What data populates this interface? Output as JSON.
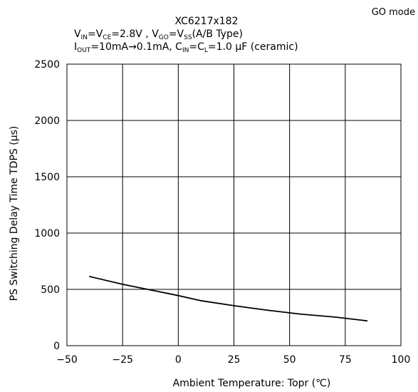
{
  "mode_label": "GO mode",
  "chart_data": {
    "type": "line",
    "title": "XC6217x182",
    "subtitle_line1": {
      "p1": "V",
      "s1": "IN",
      "p2": "=V",
      "s2": "CE",
      "p3": "=2.8V , V",
      "s3": "GO",
      "p4": "=V",
      "s4": "SS",
      "p5": "(A/B Type)"
    },
    "subtitle_line2": {
      "p1": "I",
      "s1": "OUT",
      "p2": "=10mA→0.1mA, C",
      "s2": "IN",
      "p3": "=C",
      "s3": "L",
      "p4": "=1.0 μF (ceramic)"
    },
    "xlabel": "Ambient Temperature: Topr (℃)",
    "ylabel": "PS Switching Delay Time TDPS (μs)",
    "xlim": [
      -50,
      100
    ],
    "ylim": [
      0,
      2500
    ],
    "xticks": [
      -50,
      -25,
      0,
      25,
      50,
      75,
      100
    ],
    "yticks": [
      0,
      500,
      1000,
      1500,
      2000,
      2500
    ],
    "grid": true,
    "series": [
      {
        "x": [
          -40,
          -25,
          -10,
          0,
          10,
          25,
          40,
          55,
          70,
          85
        ],
        "y": [
          615,
          545,
          485,
          445,
          400,
          355,
          315,
          280,
          255,
          220
        ]
      }
    ]
  }
}
